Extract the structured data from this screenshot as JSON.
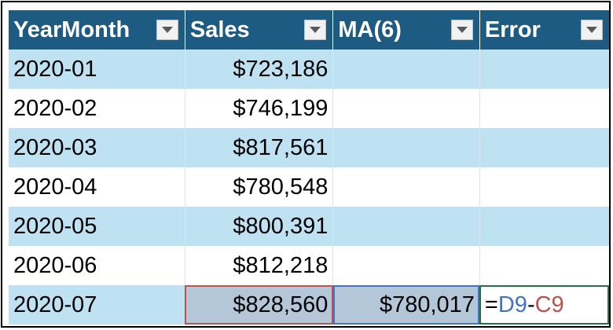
{
  "table": {
    "headers": [
      "YearMonth",
      "Sales",
      "MA(6)",
      "Error"
    ],
    "rows": [
      {
        "yearmonth": "2020-01",
        "sales": "$723,186",
        "ma": "",
        "error": ""
      },
      {
        "yearmonth": "2020-02",
        "sales": "$746,199",
        "ma": "",
        "error": ""
      },
      {
        "yearmonth": "2020-03",
        "sales": "$817,561",
        "ma": "",
        "error": ""
      },
      {
        "yearmonth": "2020-04",
        "sales": "$780,548",
        "ma": "",
        "error": ""
      },
      {
        "yearmonth": "2020-05",
        "sales": "$800,391",
        "ma": "",
        "error": ""
      },
      {
        "yearmonth": "2020-06",
        "sales": "$812,218",
        "ma": "",
        "error": ""
      },
      {
        "yearmonth": "2020-07",
        "sales": "$828,560",
        "ma": "$780,017",
        "error": ""
      }
    ]
  },
  "formula": {
    "eq": "=",
    "ref1": "D9",
    "op": "-",
    "ref2": "C9"
  },
  "icons": {
    "filter": "dropdown-arrow-icon"
  },
  "colors": {
    "header_bg": "#1e5b82",
    "band_bg": "#bfe2f3",
    "ref_blue": "#4472c4",
    "ref_red": "#c0504d",
    "edit_border": "#217346"
  }
}
